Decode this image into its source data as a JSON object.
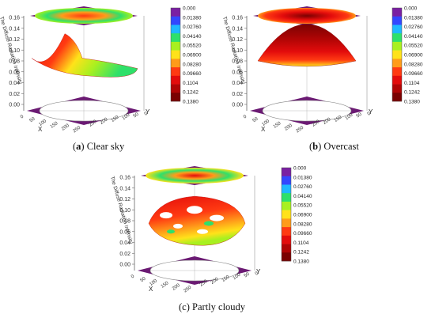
{
  "figure": {
    "panels": [
      {
        "letter": "a",
        "caption": "Clear sky"
      },
      {
        "letter": "b",
        "caption": "Overcast"
      },
      {
        "letter": "c",
        "caption": "Partly cloudy"
      }
    ]
  },
  "chart_data": [
    {
      "type": "surface3d",
      "panel": "a",
      "zlabel": "The Diffuse Radiation Intensity",
      "xlabel": "X",
      "ylabel": "Y",
      "zticks": [
        "0.00",
        "0.02",
        "0.04",
        "0.06",
        "0.08",
        "0.10",
        "0.12",
        "0.14",
        "0.16"
      ],
      "xticks": [
        "0",
        "50",
        "100",
        "150",
        "200",
        "250"
      ],
      "yticks": [
        "250",
        "200",
        "150",
        "100",
        "50",
        "0"
      ],
      "zlim": [
        0,
        0.16
      ],
      "colorbar": {
        "ticks": [
          "0.000",
          "0.01380",
          "0.02760",
          "0.04140",
          "0.05520",
          "0.06900",
          "0.08280",
          "0.09660",
          "0.1104",
          "0.1242",
          "0.1380"
        ],
        "colors": [
          "#7a1fa2",
          "#3346ff",
          "#1fb8ff",
          "#2ee06a",
          "#a8f020",
          "#ffe21a",
          "#ff9c1a",
          "#ff3a12",
          "#e30c0c",
          "#b00505",
          "#7a0202"
        ]
      },
      "description": "Asymmetric dome, peak about 0.13 near one side, lower green/yellow region elsewhere"
    },
    {
      "type": "surface3d",
      "panel": "b",
      "zlabel": "The Diffuse Radiation Intensity",
      "xlabel": "X",
      "ylabel": "Y",
      "zticks": [
        "0.00",
        "0.02",
        "0.04",
        "0.06",
        "0.08",
        "0.10",
        "0.12",
        "0.14",
        "0.16"
      ],
      "xticks": [
        "0",
        "50",
        "100",
        "150",
        "200",
        "250"
      ],
      "yticks": [
        "250",
        "200",
        "150",
        "100",
        "50",
        "0"
      ],
      "zlim": [
        0,
        0.16
      ],
      "colorbar": {
        "ticks": [
          "0.000",
          "0.01380",
          "0.02760",
          "0.04140",
          "0.05520",
          "0.06900",
          "0.08280",
          "0.09660",
          "0.1104",
          "0.1242",
          "0.1380"
        ],
        "colors": [
          "#7a1fa2",
          "#3346ff",
          "#1fb8ff",
          "#2ee06a",
          "#a8f020",
          "#ffe21a",
          "#ff9c1a",
          "#ff3a12",
          "#e30c0c",
          "#b00505",
          "#7a0202"
        ]
      },
      "description": "Symmetric dome, max about 0.14 at center"
    },
    {
      "type": "surface3d",
      "panel": "c",
      "zlabel": "The Diffuse Radiation Intensity",
      "xlabel": "X",
      "ylabel": "Y",
      "zticks": [
        "0.00",
        "0.02",
        "0.04",
        "0.06",
        "0.08",
        "0.10",
        "0.12",
        "0.14",
        "0.16"
      ],
      "xticks": [
        "0",
        "50",
        "100",
        "150",
        "200",
        "250"
      ],
      "yticks": [
        "250",
        "200",
        "150",
        "100",
        "50",
        "0"
      ],
      "zlim": [
        0,
        0.16
      ],
      "colorbar": {
        "ticks": [
          "0.000",
          "0.01380",
          "0.02760",
          "0.04140",
          "0.05520",
          "0.06900",
          "0.08280",
          "0.09660",
          "0.1104",
          "0.1242",
          "0.1380"
        ],
        "colors": [
          "#7a1fa2",
          "#3346ff",
          "#1fb8ff",
          "#2ee06a",
          "#a8f020",
          "#ffe21a",
          "#ff9c1a",
          "#ff3a12",
          "#e30c0c",
          "#b00505",
          "#7a0202"
        ]
      },
      "description": "Irregular patchy surface with gaps (cloud cover), values mostly 0.06-0.12"
    }
  ]
}
